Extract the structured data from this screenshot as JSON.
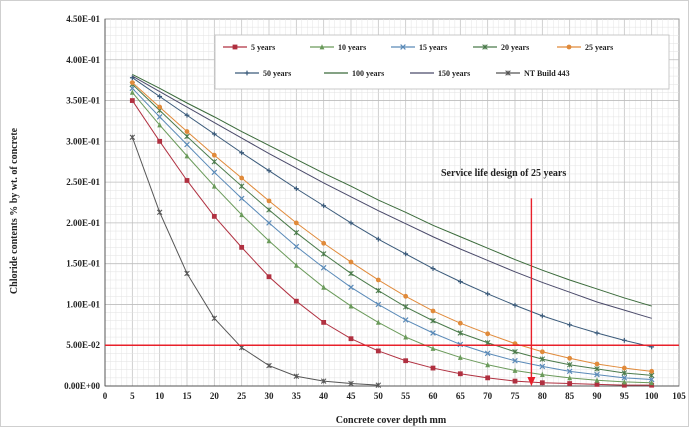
{
  "chart_data": {
    "type": "line",
    "title": "",
    "xlabel": "Concrete cover depth mm",
    "ylabel": "Chloride contents % by wt. of concrete",
    "xlim": [
      0,
      105
    ],
    "ylim": [
      0,
      0.45
    ],
    "x_ticks": [
      "0",
      "5",
      "10",
      "15",
      "20",
      "25",
      "30",
      "35",
      "40",
      "45",
      "50",
      "55",
      "60",
      "65",
      "70",
      "75",
      "80",
      "85",
      "90",
      "95",
      "100",
      "105"
    ],
    "y_ticks": [
      "0.00E+00",
      "5.00E-02",
      "1.00E-01",
      "1.50E-01",
      "2.00E-01",
      "2.50E-01",
      "3.00E-01",
      "3.50E-01",
      "4.00E-01",
      "4.50E-01"
    ],
    "grid": true,
    "legend_position": "top-right",
    "x": [
      5,
      10,
      15,
      20,
      25,
      30,
      35,
      40,
      45,
      50,
      55,
      60,
      65,
      70,
      75,
      80,
      85,
      90,
      95,
      100
    ],
    "series": [
      {
        "name": "5 years",
        "color": "#b03040",
        "marker": "square",
        "values": [
          0.35,
          0.3,
          0.252,
          0.208,
          0.17,
          0.134,
          0.104,
          0.078,
          0.058,
          0.043,
          0.031,
          0.022,
          0.015,
          0.01,
          0.006,
          0.004,
          0.003,
          0.002,
          0.001,
          0.001
        ]
      },
      {
        "name": "10 years",
        "color": "#6a9a5a",
        "marker": "triangle",
        "values": [
          0.36,
          0.32,
          0.282,
          0.245,
          0.21,
          0.178,
          0.148,
          0.121,
          0.098,
          0.078,
          0.06,
          0.046,
          0.035,
          0.026,
          0.019,
          0.014,
          0.01,
          0.007,
          0.005,
          0.004
        ]
      },
      {
        "name": "15 years",
        "color": "#5a8ab8",
        "marker": "x",
        "values": [
          0.365,
          0.33,
          0.296,
          0.262,
          0.23,
          0.2,
          0.171,
          0.145,
          0.121,
          0.1,
          0.081,
          0.065,
          0.051,
          0.04,
          0.031,
          0.024,
          0.018,
          0.014,
          0.01,
          0.008
        ]
      },
      {
        "name": "20 years",
        "color": "#4a7a4a",
        "marker": "star",
        "values": [
          0.37,
          0.338,
          0.306,
          0.275,
          0.245,
          0.216,
          0.188,
          0.162,
          0.138,
          0.117,
          0.097,
          0.08,
          0.065,
          0.053,
          0.042,
          0.033,
          0.026,
          0.021,
          0.016,
          0.013
        ]
      },
      {
        "name": "25 years",
        "color": "#e08a3a",
        "marker": "circle",
        "values": [
          0.372,
          0.342,
          0.312,
          0.283,
          0.255,
          0.227,
          0.2,
          0.175,
          0.152,
          0.13,
          0.11,
          0.092,
          0.077,
          0.064,
          0.052,
          0.042,
          0.034,
          0.027,
          0.022,
          0.018
        ]
      },
      {
        "name": "50 years",
        "color": "#3a5a7a",
        "marker": "plus",
        "values": [
          0.378,
          0.355,
          0.332,
          0.309,
          0.286,
          0.264,
          0.242,
          0.221,
          0.2,
          0.18,
          0.162,
          0.144,
          0.128,
          0.113,
          0.099,
          0.086,
          0.075,
          0.065,
          0.056,
          0.048
        ]
      },
      {
        "name": "100 years",
        "color": "#3a6a3a",
        "marker": "none",
        "values": [
          0.382,
          0.365,
          0.347,
          0.33,
          0.312,
          0.295,
          0.278,
          0.261,
          0.245,
          0.228,
          0.213,
          0.197,
          0.183,
          0.169,
          0.155,
          0.142,
          0.13,
          0.119,
          0.108,
          0.098
        ]
      },
      {
        "name": "150 years",
        "color": "#4a4a6a",
        "marker": "none",
        "values": [
          0.38,
          0.361,
          0.342,
          0.323,
          0.304,
          0.285,
          0.267,
          0.249,
          0.232,
          0.215,
          0.199,
          0.183,
          0.168,
          0.154,
          0.14,
          0.127,
          0.115,
          0.103,
          0.093,
          0.083
        ]
      },
      {
        "name": "NT Build 443",
        "color": "#555555",
        "marker": "star",
        "values": [
          0.305,
          0.213,
          0.138,
          0.083,
          0.047,
          0.025,
          0.012,
          0.006,
          0.003,
          0.001,
          null,
          null,
          null,
          null,
          null,
          null,
          null,
          null,
          null,
          null
        ]
      }
    ],
    "reference_line": {
      "axis": "y",
      "value": 0.05,
      "color": "#e8202a"
    },
    "annotation": {
      "text": "Service life design of 25 years",
      "arrow_x": 78,
      "arrow_from_y": 0.23,
      "arrow_to_y": 0.0,
      "color": "#e8202a"
    }
  }
}
